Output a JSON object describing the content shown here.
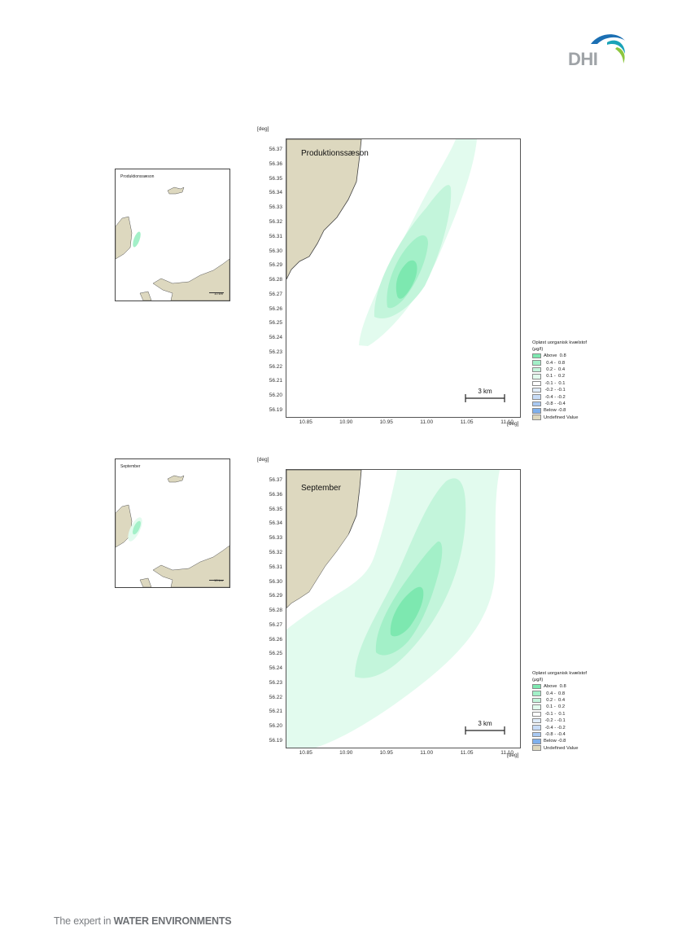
{
  "header": {
    "logo_text": "DHI",
    "logo_colors": {
      "text": "#9fa3a7",
      "wave_dark": "#1b6fb3",
      "wave_teal": "#1aa3b8",
      "wave_green": "#8dc63f"
    }
  },
  "footer": {
    "tagline_prefix": "The expert in ",
    "tagline_bold": "WATER ENVIRONMENTS"
  },
  "colors": {
    "land": "#ddd8bf",
    "above_0_8": "#7de8b0",
    "c_0_4_0_8": "#a3f0c8",
    "c_0_2_0_4": "#c3f5db",
    "c_0_1_0_2": "#e2fbee",
    "neg_0_1_0_1": "#ffffff",
    "neg_0_2_0_1": "#e1edfb",
    "neg_0_4_0_2": "#c7dcf7",
    "neg_0_8_0_4": "#a9c9f2",
    "below_neg_0_8": "#7fb0ec",
    "undefined": "#ddd8bf"
  },
  "legend": {
    "title": "Opløst uorganisk kvælstof",
    "unit": "(µg/l)",
    "items": [
      {
        "label": "Above  0.8",
        "color": "#7de8b0"
      },
      {
        "label": "  0.4 -  0.8",
        "color": "#a3f0c8"
      },
      {
        "label": "  0.2 -  0.4",
        "color": "#c3f5db"
      },
      {
        "label": "  0.1 -  0.2",
        "color": "#e2fbee"
      },
      {
        "label": " -0.1 -  0.1",
        "color": "#ffffff"
      },
      {
        "label": " -0.2 - -0.1",
        "color": "#e1edfb"
      },
      {
        "label": " -0.4 - -0.2",
        "color": "#c7dcf7"
      },
      {
        "label": " -0.8 - -0.4",
        "color": "#a9c9f2"
      },
      {
        "label": "Below -0.8",
        "color": "#7fb0ec"
      },
      {
        "label": "Undefined Value",
        "color": "#ddd8bf"
      }
    ]
  },
  "axes": {
    "y_unit": "[deg]",
    "x_unit": "[deg]",
    "y_ticks": [
      "56.37",
      "56.36",
      "56.35",
      "56.34",
      "56.33",
      "56.32",
      "56.31",
      "56.30",
      "56.29",
      "56.28",
      "56.27",
      "56.26",
      "56.25",
      "56.24",
      "56.23",
      "56.22",
      "56.21",
      "56.20",
      "56.19"
    ],
    "x_ticks": [
      "10.85",
      "10.90",
      "10.95",
      "11.00",
      "11.05",
      "11.10"
    ],
    "x_range": [
      10.825,
      11.115
    ],
    "y_range": [
      56.186,
      56.378
    ]
  },
  "maps": [
    {
      "id": "production",
      "title": "Produktionssæson",
      "overview_title": "Produktionssæson",
      "overview_scale": "10 km",
      "scalebar_label": "3 km"
    },
    {
      "id": "september",
      "title": "September",
      "overview_title": "September",
      "overview_scale": "10 km",
      "scalebar_label": "3 km"
    }
  ]
}
